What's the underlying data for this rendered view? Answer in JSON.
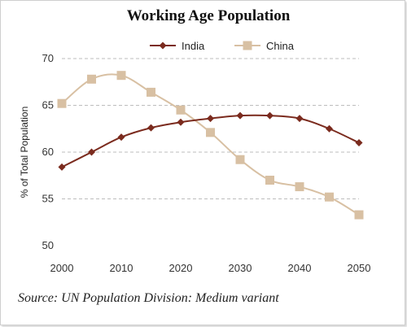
{
  "page": {
    "title": "Working Age Population",
    "source": "Source: UN Population Division: Medium variant"
  },
  "chart_data": {
    "type": "line",
    "title": "Working Age Population",
    "xlabel": "",
    "ylabel": "% of Total Population",
    "x": [
      2000,
      2005,
      2010,
      2015,
      2020,
      2025,
      2030,
      2035,
      2040,
      2045,
      2050
    ],
    "xticks": [
      "2000",
      "2010",
      "2020",
      "2030",
      "2040",
      "2050"
    ],
    "yticks": [
      "50",
      "55",
      "60",
      "65",
      "70"
    ],
    "xlim": [
      2000,
      2050
    ],
    "ylim": [
      50,
      70
    ],
    "grid": "horizontal dashed",
    "legend_position": "top-center",
    "series": [
      {
        "name": "India",
        "color": "#7b2b1e",
        "marker": "diamond",
        "values": [
          58.4,
          60.0,
          61.6,
          62.6,
          63.2,
          63.6,
          63.9,
          63.9,
          63.6,
          62.5,
          61.0
        ]
      },
      {
        "name": "China",
        "color": "#d8c0a3",
        "marker": "square",
        "values": [
          65.2,
          67.8,
          68.2,
          66.4,
          64.5,
          62.1,
          59.2,
          57.0,
          56.3,
          55.2,
          53.3
        ]
      }
    ]
  }
}
